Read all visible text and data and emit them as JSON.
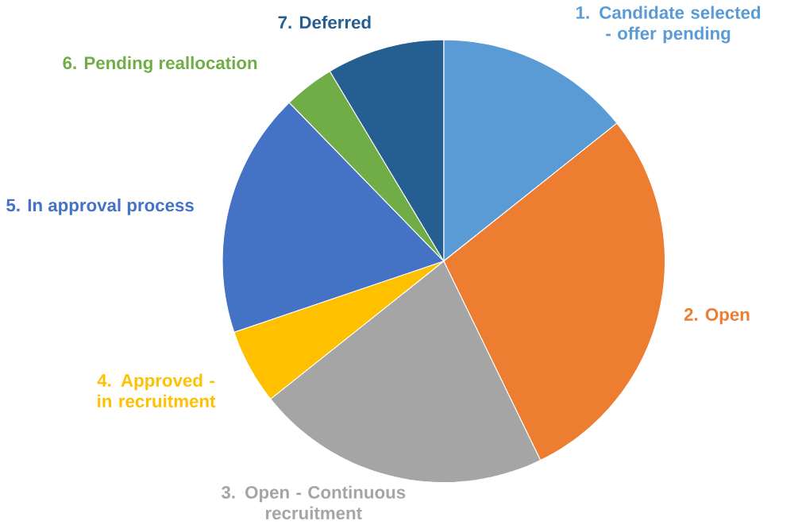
{
  "chart_data": {
    "type": "pie",
    "categories": [
      "1. Candidate selected - offer pending",
      "2. Open",
      "3. Open - Continuous recruitment",
      "4. Approved - in recruitment",
      "5. In approval process",
      "6. Pending reallocation",
      "7. Deferred"
    ],
    "values": [
      14.3,
      28.5,
      21.5,
      5.5,
      17.9,
      3.7,
      8.6
    ],
    "colors": [
      "#5b9bd5",
      "#ed7d31",
      "#a5a5a5",
      "#ffc000",
      "#4472c4",
      "#70ad47",
      "#255e91"
    ]
  }
}
